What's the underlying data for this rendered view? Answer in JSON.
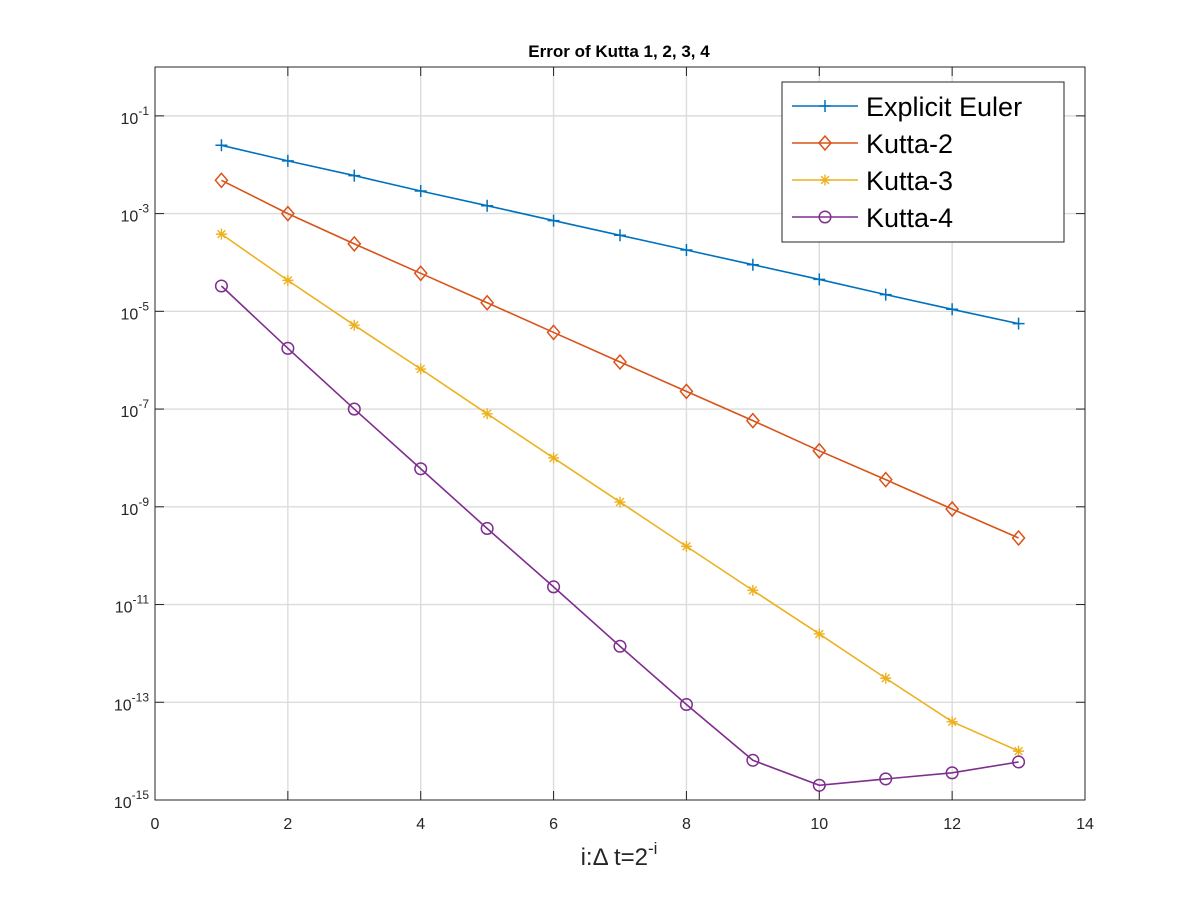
{
  "chart_data": {
    "type": "line",
    "title": "Error of Kutta 1, 2, 3, 4",
    "xlabel": "i:Δ t=2^-i",
    "xlabel_parts": {
      "base": "i:Δ t=2",
      "sup": "-i"
    },
    "ylabel": "",
    "xlim": [
      0,
      14
    ],
    "ylim": [
      1e-15,
      1
    ],
    "yscale": "log",
    "grid": true,
    "legend_position": "top-right",
    "x_ticks": [
      0,
      2,
      4,
      6,
      8,
      10,
      12,
      14
    ],
    "x_tick_labels": [
      "0",
      "2",
      "4",
      "6",
      "8",
      "10",
      "12",
      "14"
    ],
    "y_ticks": [
      {
        "value": 0.1,
        "base": "10",
        "exp": "-1"
      },
      {
        "value": 0.001,
        "base": "10",
        "exp": "-3"
      },
      {
        "value": 1e-05,
        "base": "10",
        "exp": "-5"
      },
      {
        "value": 1e-07,
        "base": "10",
        "exp": "-7"
      },
      {
        "value": 1e-09,
        "base": "10",
        "exp": "-9"
      },
      {
        "value": 1e-11,
        "base": "10",
        "exp": "-11"
      },
      {
        "value": 1e-13,
        "base": "10",
        "exp": "-13"
      },
      {
        "value": 1e-15,
        "base": "10",
        "exp": "-15"
      }
    ],
    "x": [
      1,
      2,
      3,
      4,
      5,
      6,
      7,
      8,
      9,
      10,
      11,
      12,
      13
    ],
    "series": [
      {
        "name": "Explicit Euler",
        "color": "#0072BD",
        "marker": "plus",
        "values": [
          0.025,
          0.012,
          0.006,
          0.0029,
          0.00145,
          0.00072,
          0.00036,
          0.00018,
          9e-05,
          4.5e-05,
          2.2e-05,
          1.1e-05,
          5.6e-06
        ]
      },
      {
        "name": "Kutta-2",
        "color": "#D95319",
        "marker": "diamond",
        "values": [
          0.0048,
          0.001,
          0.00024,
          6e-05,
          1.5e-05,
          3.7e-06,
          9.2e-07,
          2.3e-07,
          5.8e-08,
          1.4e-08,
          3.6e-09,
          9e-10,
          2.3e-10
        ]
      },
      {
        "name": "Kutta-3",
        "color": "#EDB120",
        "marker": "asterisk",
        "values": [
          0.00038,
          4.3e-05,
          5.2e-06,
          6.6e-07,
          8e-08,
          1e-08,
          1.25e-09,
          1.55e-10,
          1.95e-11,
          2.5e-12,
          3.1e-13,
          4e-14,
          1e-14
        ]
      },
      {
        "name": "Kutta-4",
        "color": "#7E2F8E",
        "marker": "circle",
        "values": [
          3.3e-05,
          1.75e-06,
          1e-07,
          6e-09,
          3.6e-10,
          2.3e-11,
          1.4e-12,
          9e-14,
          6.5e-15,
          2e-15,
          2.7e-15,
          3.6e-15,
          6e-15
        ]
      }
    ]
  }
}
